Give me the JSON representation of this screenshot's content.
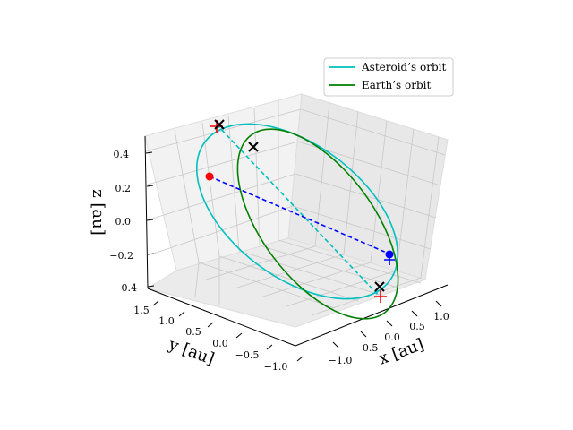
{
  "chart_data": {
    "type": "3d-line",
    "xlabel": "x [au]",
    "ylabel": "y [au]",
    "zlabel": "z [au]",
    "x_ticks": [
      "−1.0",
      "−0.5",
      "0.0",
      "0.5",
      "1.0"
    ],
    "y_ticks": [
      "1.5",
      "1.0",
      "0.5",
      "0.0",
      "−0.5",
      "−1.0"
    ],
    "z_ticks": [
      "0.4",
      "0.2",
      "0.0",
      "−0.2",
      "−0.4"
    ],
    "grid": true,
    "legend_placement": "top-right",
    "series": [
      {
        "name": "Asteroid’s orbit",
        "color": "#17becf",
        "style": "solid"
      },
      {
        "name": "Earth’s orbit",
        "color": "#008000",
        "style": "solid"
      }
    ],
    "colors": {
      "asteroid": "#00bfbf",
      "earth": "#008000",
      "line_of_nodes_asteroid": "#00bfbf",
      "line_earth_sun": "#0000ff",
      "marker_red": "#ff0000",
      "marker_blue": "#0000ff",
      "marker_cross": "#000000"
    }
  }
}
